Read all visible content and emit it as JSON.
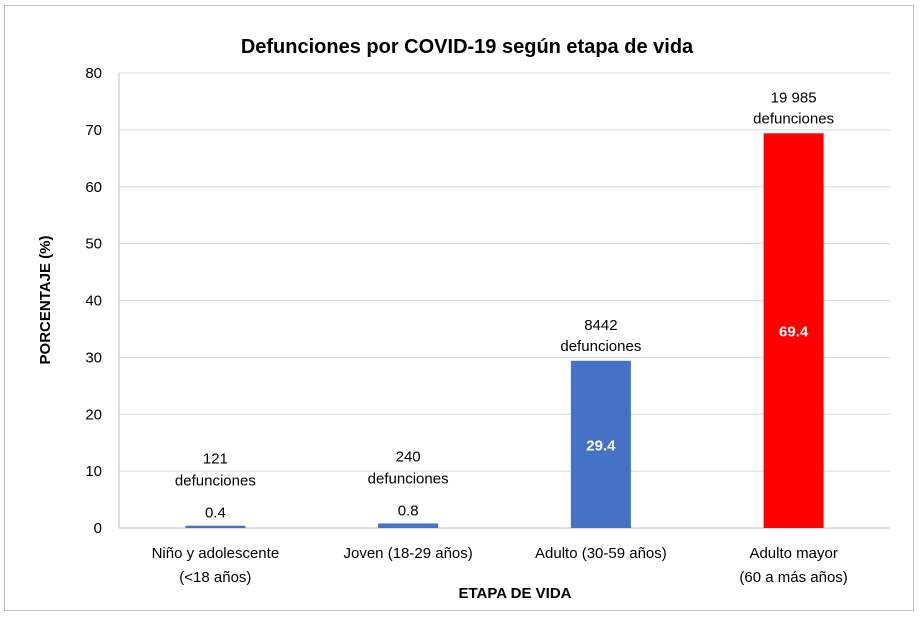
{
  "chart_data": {
    "type": "bar",
    "title": "Defunciones por COVID-19 según etapa de vida",
    "xlabel": "ETAPA DE VIDA",
    "ylabel": "PORCENTAJE (%)",
    "ylim": [
      0,
      80
    ],
    "yticks": [
      0,
      10,
      20,
      30,
      40,
      50,
      60,
      70,
      80
    ],
    "grid": true,
    "categories": [
      [
        "Niño y adolescente",
        "(<18 años)"
      ],
      [
        "Joven (18-29 años)"
      ],
      [
        "Adulto (30-59 años)"
      ],
      [
        "Adulto mayor",
        "(60 a más años)"
      ]
    ],
    "values": [
      0.4,
      0.8,
      29.4,
      69.4
    ],
    "value_labels": [
      "0.4",
      "0.8",
      "29.4",
      "69.4"
    ],
    "annotations": [
      [
        "121",
        "defunciones"
      ],
      [
        "240",
        "defunciones"
      ],
      [
        "8442",
        "defunciones"
      ],
      [
        "19 985",
        "defunciones"
      ]
    ],
    "colors": [
      "#4472c4",
      "#4472c4",
      "#4472c4",
      "#ff0000"
    ]
  }
}
